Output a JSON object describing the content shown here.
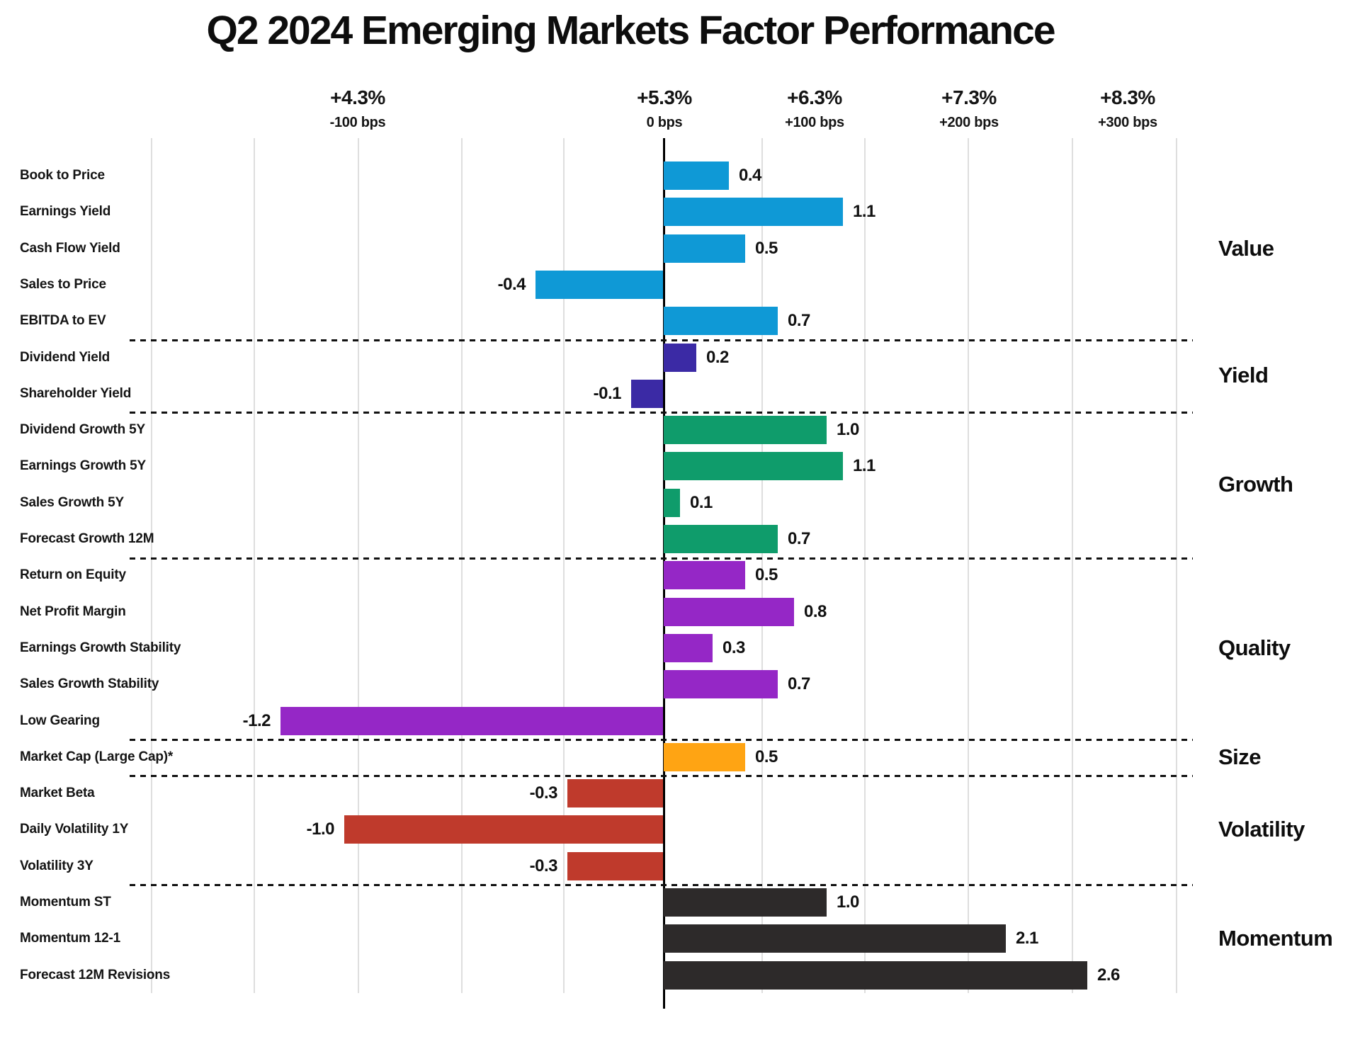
{
  "title": "Q2 2024 Emerging Markets Factor Performance",
  "chart_data": {
    "type": "bar",
    "orientation": "horizontal",
    "title": "Q2 2024 Emerging Markets Factor Performance",
    "value_unit": "percentage points of active return (1.0 = 100 bps)",
    "grid": true,
    "legend": "none",
    "x_axis": {
      "ticks": [
        {
          "pct": "+4.3%",
          "bps": "-100 bps",
          "bps_value": -100
        },
        {
          "pct": "+5.3%",
          "bps": "0 bps",
          "bps_value": 0
        },
        {
          "pct": "+6.3%",
          "bps": "+100 bps",
          "bps_value": 100
        },
        {
          "pct": "+7.3%",
          "bps": "+200 bps",
          "bps_value": 200
        },
        {
          "pct": "+8.3%",
          "bps": "+300 bps",
          "bps_value": 300
        }
      ]
    },
    "sections": [
      {
        "name": "Value",
        "color": "#0f99d6",
        "factors": [
          {
            "label": "Book to Price",
            "value": 0.4,
            "value_label": "0.4"
          },
          {
            "label": "Earnings Yield",
            "value": 1.1,
            "value_label": "1.1"
          },
          {
            "label": "Cash Flow Yield",
            "value": 0.5,
            "value_label": "0.5"
          },
          {
            "label": "Sales to Price",
            "value": -0.4,
            "value_label": "-0.4"
          },
          {
            "label": "EBITDA to EV",
            "value": 0.7,
            "value_label": "0.7"
          }
        ]
      },
      {
        "name": "Yield",
        "color": "#3b2aa5",
        "factors": [
          {
            "label": "Dividend Yield",
            "value": 0.2,
            "value_label": "0.2"
          },
          {
            "label": "Shareholder Yield",
            "value": -0.1,
            "value_label": "-0.1"
          }
        ]
      },
      {
        "name": "Growth",
        "color": "#0f9c6b",
        "factors": [
          {
            "label": "Dividend Growth 5Y",
            "value": 1.0,
            "value_label": "1.0"
          },
          {
            "label": "Earnings Growth 5Y",
            "value": 1.1,
            "value_label": "1.1"
          },
          {
            "label": "Sales Growth 5Y",
            "value": 0.1,
            "value_label": "0.1"
          },
          {
            "label": "Forecast Growth 12M",
            "value": 0.7,
            "value_label": "0.7"
          }
        ]
      },
      {
        "name": "Quality",
        "color": "#9527c6",
        "factors": [
          {
            "label": "Return on Equity",
            "value": 0.5,
            "value_label": "0.5"
          },
          {
            "label": "Net Profit Margin",
            "value": 0.8,
            "value_label": "0.8"
          },
          {
            "label": "Earnings Growth Stability",
            "value": 0.3,
            "value_label": "0.3"
          },
          {
            "label": "Sales Growth Stability",
            "value": 0.7,
            "value_label": "0.7"
          },
          {
            "label": "Low Gearing",
            "value": -1.2,
            "value_label": "-1.2"
          }
        ]
      },
      {
        "name": "Size",
        "color": "#ffa413",
        "factors": [
          {
            "label": "Market Cap (Large Cap)*",
            "value": 0.5,
            "value_label": "0.5"
          }
        ]
      },
      {
        "name": "Volatility",
        "color": "#bf3a2c",
        "factors": [
          {
            "label": "Market Beta",
            "value": -0.3,
            "value_label": "-0.3"
          },
          {
            "label": "Daily Volatility 1Y",
            "value": -1.0,
            "value_label": "-1.0"
          },
          {
            "label": "Volatility 3Y",
            "value": -0.3,
            "value_label": "-0.3"
          }
        ]
      },
      {
        "name": "Momentum",
        "color": "#2d2a2a",
        "factors": [
          {
            "label": "Momentum ST",
            "value": 1.0,
            "value_label": "1.0"
          },
          {
            "label": "Momentum 12-1",
            "value": 2.1,
            "value_label": "2.1"
          },
          {
            "label": "Forecast 12M Revisions",
            "value": 2.6,
            "value_label": "2.6"
          }
        ]
      }
    ]
  }
}
